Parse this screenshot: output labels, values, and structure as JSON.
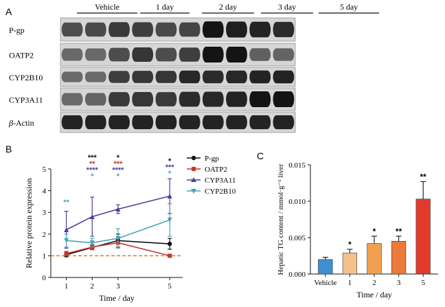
{
  "panelA": {
    "label": "A",
    "groups": [
      "Vehicle",
      "1 day",
      "2 day",
      "3 day",
      "5 day"
    ],
    "proteins": [
      {
        "name": "P-gp",
        "intensity": [
          0.7,
          0.72,
          0.8,
          0.78,
          0.72,
          0.75,
          1.0,
          0.95,
          0.92,
          0.88
        ]
      },
      {
        "name": "OATP2",
        "intensity": [
          0.55,
          0.55,
          0.7,
          0.82,
          0.7,
          0.78,
          1.0,
          1.0,
          0.6,
          0.58
        ]
      },
      {
        "name": "CYP2B10",
        "intensity": [
          0.55,
          0.55,
          0.78,
          0.82,
          0.82,
          0.9,
          0.88,
          0.9,
          0.92,
          0.92
        ]
      },
      {
        "name": "CYP3A11",
        "intensity": [
          0.55,
          0.58,
          0.8,
          0.82,
          0.8,
          0.88,
          0.9,
          0.92,
          1.0,
          1.0
        ]
      },
      {
        "name": "β-Actin",
        "name_prefix": "β",
        "name_suffix": "-Actin",
        "intensity": [
          0.92,
          0.92,
          0.92,
          0.92,
          0.92,
          0.92,
          0.92,
          0.92,
          0.92,
          0.92
        ]
      }
    ]
  },
  "panelB": {
    "label": "B",
    "chart_data": {
      "type": "line",
      "xlabel": "Time / day",
      "ylabel": "Relative protein expression",
      "x": [
        1,
        2,
        3,
        5
      ],
      "xticks": [
        "1",
        "2",
        "3",
        "5"
      ],
      "ylim": [
        0,
        5
      ],
      "yticks": [
        "0",
        "1",
        "2",
        "3",
        "4",
        "5"
      ],
      "reference_line": 1,
      "reference_color": "#e87722",
      "series": [
        {
          "name": "P-gp",
          "color": "#111111",
          "values": [
            1.05,
            1.38,
            1.7,
            1.55
          ],
          "errors": [
            0.1,
            0.1,
            0.3,
            0.25
          ]
        },
        {
          "name": "OATP2",
          "color": "#c0392b",
          "values": [
            1.1,
            1.4,
            1.6,
            1.0
          ],
          "errors": [
            0.1,
            0.12,
            0.2,
            0.05
          ]
        },
        {
          "name": "CYP3A11",
          "color": "#4b3f9e",
          "values": [
            2.2,
            2.8,
            3.15,
            3.75
          ],
          "errors": [
            0.85,
            0.9,
            0.2,
            0.8
          ]
        },
        {
          "name": "CYP2B10",
          "color": "#4aa3b8",
          "values": [
            1.7,
            1.6,
            1.8,
            2.65
          ],
          "errors": [
            0.3,
            0.2,
            0.45,
            0.75
          ]
        }
      ],
      "annotations": [
        {
          "x": 1,
          "lines": [
            {
              "text": "**",
              "color": "#4aa3b8"
            }
          ]
        },
        {
          "x": 2,
          "lines": [
            {
              "text": "***",
              "color": "#111111"
            },
            {
              "text": "**",
              "color": "#c0392b"
            },
            {
              "text": "****",
              "color": "#4b3f9e"
            },
            {
              "text": "*",
              "color": "#4aa3b8"
            }
          ]
        },
        {
          "x": 3,
          "lines": [
            {
              "text": "*",
              "color": "#111111"
            },
            {
              "text": "***",
              "color": "#c0392b"
            },
            {
              "text": "****",
              "color": "#4b3f9e"
            },
            {
              "text": "*",
              "color": "#4aa3b8"
            }
          ]
        },
        {
          "x": 5,
          "lines": [
            {
              "text": "*",
              "color": "#111111"
            },
            {
              "text": "***",
              "color": "#4b3f9e"
            },
            {
              "text": "*",
              "color": "#4aa3b8"
            }
          ]
        }
      ]
    }
  },
  "panelC": {
    "label": "C",
    "chart_data": {
      "type": "bar",
      "xlabel": "Time / day",
      "ylabel": "Hepatic TG content / mmol·g⁻¹ liver",
      "categories": [
        "Vehicle",
        "1",
        "2",
        "3",
        "5"
      ],
      "values": [
        0.002,
        0.0029,
        0.0042,
        0.0045,
        0.0103
      ],
      "errors": [
        0.0003,
        0.0005,
        0.001,
        0.0007,
        0.0024
      ],
      "colors": [
        "#3d8fd1",
        "#f6c08c",
        "#f0a050",
        "#ec7a3a",
        "#e23b2e"
      ],
      "significance": [
        "",
        "*",
        "*",
        "**",
        "**"
      ],
      "ylim": [
        0,
        0.015
      ],
      "yticks": [
        "0.000",
        "0.005",
        "0.010",
        "0.015"
      ]
    }
  }
}
